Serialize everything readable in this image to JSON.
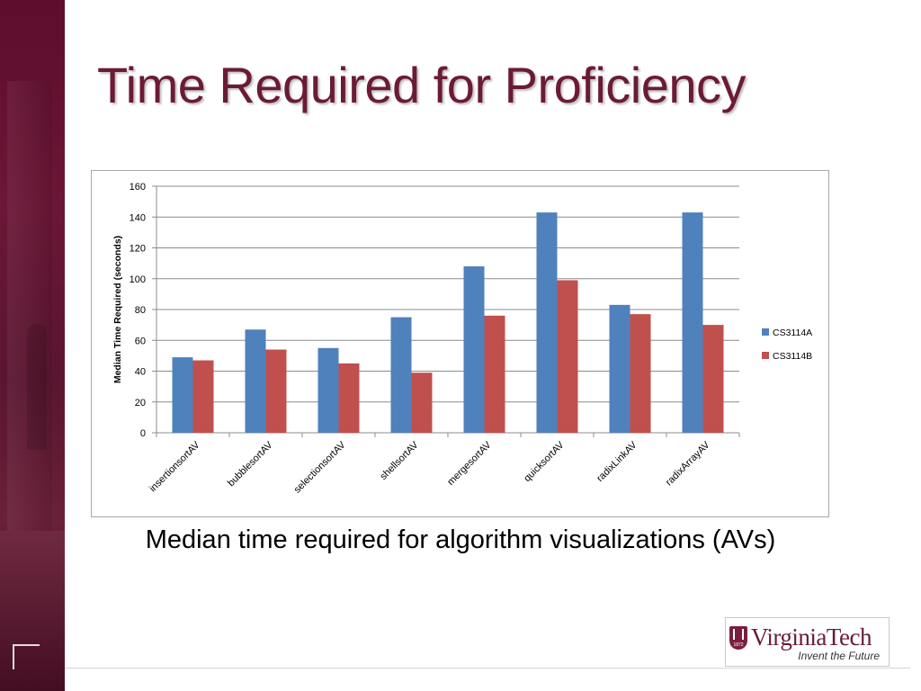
{
  "slide": {
    "title": "Time Required for Proficiency",
    "caption": "Median time required for algorithm visualizations (AVs)"
  },
  "logo": {
    "name": "VirginiaTech",
    "tagline": "Invent the Future",
    "seal_year": "1872"
  },
  "colors": {
    "title": "#6b1a37",
    "sidebar": "#5e0d2c",
    "series_a": "#4f81bd",
    "series_b": "#c0504d"
  },
  "chart_data": {
    "type": "bar",
    "ylabel": "Median Time Required (seconds)",
    "xlabel": "",
    "ylim": [
      0,
      160
    ],
    "yticks": [
      0,
      20,
      40,
      60,
      80,
      100,
      120,
      140,
      160
    ],
    "grid": true,
    "legend_position": "right",
    "categories": [
      "insertionsortAV",
      "bubblesortAV",
      "selectionsortAV",
      "shellsortAV",
      "mergesortAV",
      "quicksortAV",
      "radixLinkAV",
      "radixArrayAV"
    ],
    "series": [
      {
        "name": "CS3114A",
        "color": "#4f81bd",
        "values": [
          49,
          67,
          55,
          75,
          108,
          143,
          83,
          143
        ]
      },
      {
        "name": "CS3114B",
        "color": "#c0504d",
        "values": [
          47,
          54,
          45,
          39,
          76,
          99,
          77,
          70
        ]
      }
    ]
  }
}
